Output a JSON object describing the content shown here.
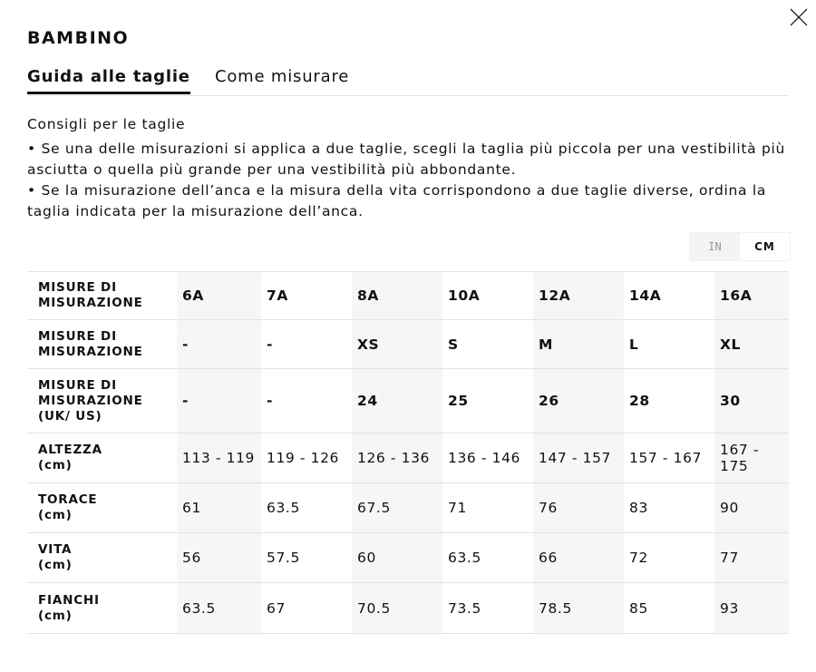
{
  "title": "BAMBINO",
  "tabs": [
    {
      "label": "Guida alle taglie",
      "active": true
    },
    {
      "label": "Come misurare",
      "active": false
    }
  ],
  "tips": {
    "heading": "Consigli per le taglie",
    "items": [
      "• Se una delle misurazioni si applica a due taglie, scegli la taglia più piccola per una vestibilità più asciutta o quella più grande per una vestibilità più abbondante.",
      "• Se la misurazione dell’anca e la misura della vita corrispondono a due taglie diverse, ordina la taglia indicata per la misurazione dell’anca."
    ]
  },
  "units": {
    "in": "IN",
    "cm": "CM",
    "selected": "CM"
  },
  "table": {
    "rows": [
      {
        "label": [
          "MISURE DI",
          "MISURAZIONE"
        ],
        "bold": true,
        "h": 53,
        "cells": [
          "6A",
          "7A",
          "8A",
          "10A",
          "12A",
          "14A",
          "16A"
        ]
      },
      {
        "label": [
          "MISURE DI",
          "MISURAZIONE"
        ],
        "bold": true,
        "h": 54,
        "cells": [
          "-",
          "-",
          "XS",
          "S",
          "M",
          "L",
          "XL"
        ]
      },
      {
        "label": [
          "MISURE DI",
          "MISURAZIONE",
          "(UK/ US)"
        ],
        "bold": true,
        "h": 71,
        "cells": [
          "-",
          "-",
          "24",
          "25",
          "26",
          "28",
          "30"
        ]
      },
      {
        "label": [
          "ALTEZZA",
          "(cm)"
        ],
        "bold": false,
        "h": 55,
        "cells": [
          "113 - 119",
          "119 - 126",
          "126 - 136",
          "136 - 146",
          "147 - 157",
          "157 - 167",
          "167 - 175"
        ]
      },
      {
        "label": [
          "TORACE",
          "(cm)"
        ],
        "bold": false,
        "h": 55,
        "cells": [
          "61",
          "63.5",
          "67.5",
          "71",
          "76",
          "83",
          "90"
        ]
      },
      {
        "label": [
          "VITA",
          "(cm)"
        ],
        "bold": false,
        "h": 55,
        "cells": [
          "56",
          "57.5",
          "60",
          "63.5",
          "66",
          "72",
          "77"
        ]
      },
      {
        "label": [
          "FIANCHI",
          "(cm)"
        ],
        "bold": false,
        "h": 56,
        "cells": [
          "63.5",
          "67",
          "70.5",
          "73.5",
          "78.5",
          "85",
          "93"
        ]
      }
    ]
  },
  "icons": {
    "close": "close-icon"
  }
}
